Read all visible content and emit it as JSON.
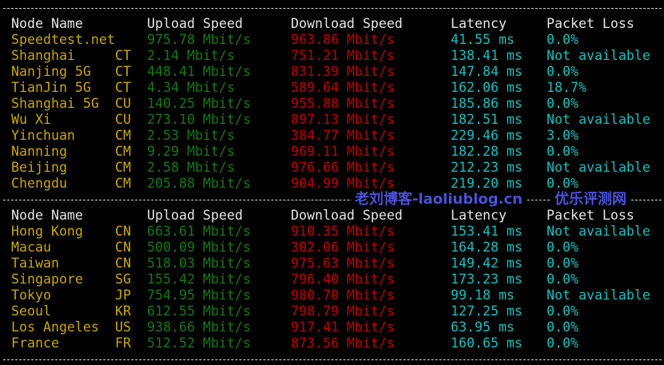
{
  "colors": {
    "name": "#c8a800",
    "upload": "#147a14",
    "download": "#c00000",
    "latency": "#12c0c0",
    "header": "#e6e6e6"
  },
  "headers": {
    "node": "Node Name",
    "upload": "Upload Speed",
    "download": "Download Speed",
    "latency": "Latency",
    "loss": "Packet Loss"
  },
  "tables": [
    {
      "rows": [
        {
          "name": "Speedtest.net",
          "cc": "",
          "up": "975.78 Mbit/s",
          "down": "963.86 Mbit/s",
          "lat": "41.55 ms",
          "loss": "0.0%"
        },
        {
          "name": "Shanghai",
          "cc": "CT",
          "up": "2.14 Mbit/s",
          "down": "751.21 Mbit/s",
          "lat": "138.41 ms",
          "loss": "Not available"
        },
        {
          "name": "Nanjing 5G",
          "cc": "CT",
          "up": "448.41 Mbit/s",
          "down": "831.39 Mbit/s",
          "lat": "147.84 ms",
          "loss": "0.0%"
        },
        {
          "name": "TianJin 5G",
          "cc": "CT",
          "up": "4.34 Mbit/s",
          "down": "589.64 Mbit/s",
          "lat": "162.06 ms",
          "loss": "18.7%"
        },
        {
          "name": "Shanghai 5G",
          "cc": "CU",
          "up": "140.25 Mbit/s",
          "down": "955.88 Mbit/s",
          "lat": "185.86 ms",
          "loss": "0.0%"
        },
        {
          "name": "Wu Xi",
          "cc": "CU",
          "up": "273.10 Mbit/s",
          "down": "897.13 Mbit/s",
          "lat": "182.51 ms",
          "loss": "Not available"
        },
        {
          "name": "Yinchuan",
          "cc": "CM",
          "up": "2.53 Mbit/s",
          "down": "384.77 Mbit/s",
          "lat": "229.46 ms",
          "loss": "3.0%"
        },
        {
          "name": "Nanning",
          "cc": "CM",
          "up": "9.29 Mbit/s",
          "down": "969.11 Mbit/s",
          "lat": "182.28 ms",
          "loss": "0.0%"
        },
        {
          "name": "Beijing",
          "cc": "CM",
          "up": "2.58 Mbit/s",
          "down": "976.66 Mbit/s",
          "lat": "212.23 ms",
          "loss": "Not available"
        },
        {
          "name": "Chengdu",
          "cc": "CM",
          "up": "205.88 Mbit/s",
          "down": "904.99 Mbit/s",
          "lat": "219.20 ms",
          "loss": "0.0%"
        }
      ]
    },
    {
      "rows": [
        {
          "name": "Hong Kong",
          "cc": "CN",
          "up": "663.61 Mbit/s",
          "down": "910.35 Mbit/s",
          "lat": "153.41 ms",
          "loss": "Not available"
        },
        {
          "name": "Macau",
          "cc": "CN",
          "up": "500.09 Mbit/s",
          "down": "302.06 Mbit/s",
          "lat": "164.28 ms",
          "loss": "0.0%"
        },
        {
          "name": "Taiwan",
          "cc": "CN",
          "up": "518.03 Mbit/s",
          "down": "975.63 Mbit/s",
          "lat": "149.42 ms",
          "loss": "0.0%"
        },
        {
          "name": "Singapore",
          "cc": "SG",
          "up": "155.42 Mbit/s",
          "down": "796.40 Mbit/s",
          "lat": "173.23 ms",
          "loss": "0.0%"
        },
        {
          "name": "Tokyo",
          "cc": "JP",
          "up": "754.95 Mbit/s",
          "down": "980.70 Mbit/s",
          "lat": "99.18 ms",
          "loss": "Not available"
        },
        {
          "name": "Seoul",
          "cc": "KR",
          "up": "612.55 Mbit/s",
          "down": "798.79 Mbit/s",
          "lat": "127.25 ms",
          "loss": "0.0%"
        },
        {
          "name": "Los Angeles",
          "cc": "US",
          "up": "938.66 Mbit/s",
          "down": "917.41 Mbit/s",
          "lat": "63.95 ms",
          "loss": "0.0%"
        },
        {
          "name": "France",
          "cc": "FR",
          "up": "512.52 Mbit/s",
          "down": "873.56 Mbit/s",
          "lat": "160.65 ms",
          "loss": "0.0%"
        }
      ]
    }
  ],
  "watermark": {
    "text1": "老刘博客-laoliublog.cn",
    "text2": "优乐评测网"
  }
}
